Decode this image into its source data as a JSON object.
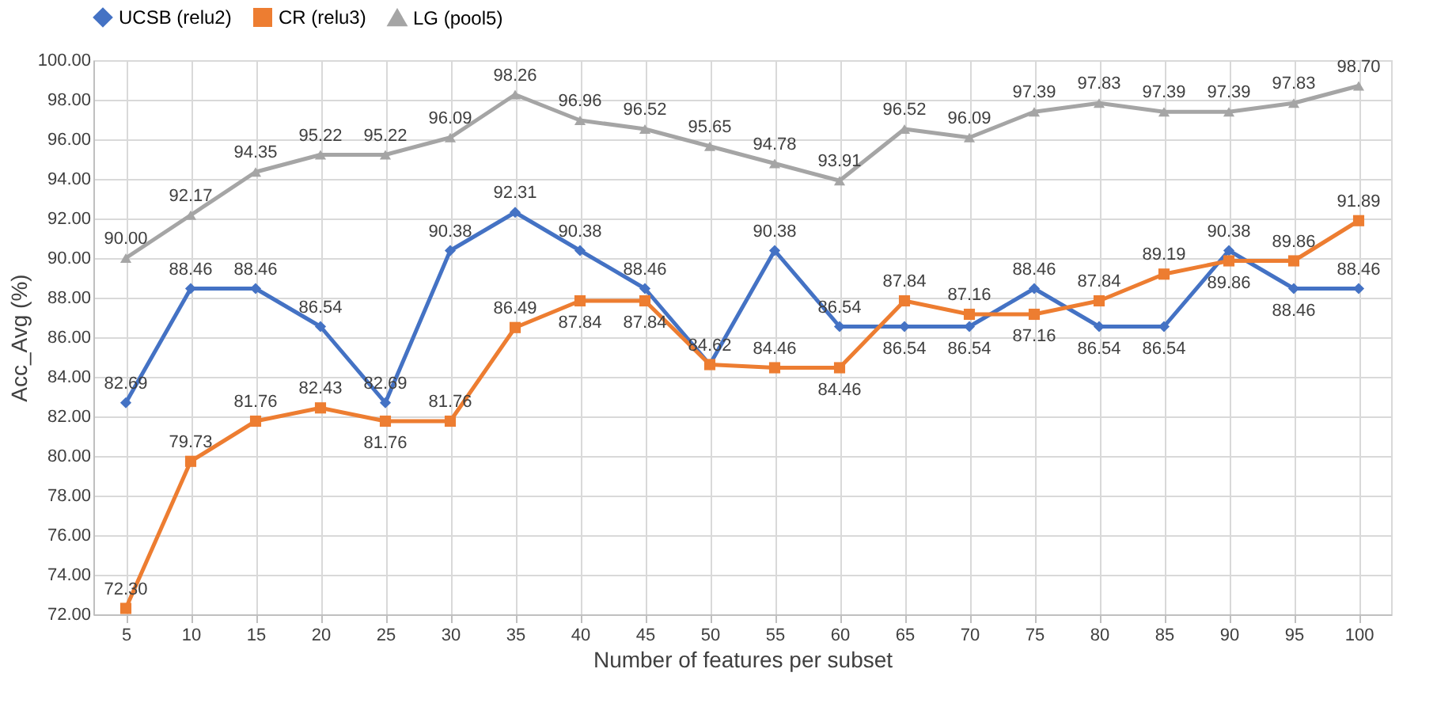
{
  "chart_data": {
    "type": "line",
    "xlabel": "Number of features per subset",
    "ylabel": "Acc_Avg  (%)",
    "categories": [
      "5",
      "10",
      "15",
      "20",
      "25",
      "30",
      "35",
      "40",
      "45",
      "50",
      "55",
      "60",
      "65",
      "70",
      "75",
      "80",
      "85",
      "90",
      "95",
      "100"
    ],
    "series": [
      {
        "name": "UCSB (relu2)",
        "color": "#4472c4",
        "marker": "diamond",
        "values": [
          82.69,
          88.46,
          88.46,
          86.54,
          82.69,
          90.38,
          92.31,
          90.38,
          88.46,
          84.62,
          90.38,
          86.54,
          86.54,
          86.54,
          88.46,
          86.54,
          86.54,
          90.38,
          88.46,
          88.46
        ],
        "value_labels": [
          "82.69",
          "88.46",
          "88.46",
          "86.54",
          "82.69",
          "90.38",
          "92.31",
          "90.38",
          "88.46",
          "84.62",
          "90.38",
          "86.54",
          "86.54",
          "86.54",
          "88.46",
          "86.54",
          "86.54",
          "90.38",
          "88.46",
          "88.46"
        ]
      },
      {
        "name": "CR (relu3)",
        "color": "#ed7d31",
        "marker": "square",
        "values": [
          72.3,
          79.73,
          81.76,
          82.43,
          81.76,
          81.76,
          86.49,
          87.84,
          87.84,
          84.62,
          84.46,
          84.46,
          87.84,
          87.16,
          87.16,
          87.84,
          89.19,
          89.86,
          89.86,
          91.89
        ],
        "value_labels": [
          "72.30",
          "79.73",
          "81.76",
          "82.43",
          "81.76",
          "81.76",
          "86.49",
          "87.84",
          "87.84",
          null,
          "84.46",
          "84.46",
          "87.84",
          "87.16",
          "87.16",
          "87.84",
          "89.19",
          "89.86",
          "89.86",
          "91.89"
        ]
      },
      {
        "name": "LG (pool5)",
        "color": "#a5a5a5",
        "marker": "triangle",
        "values": [
          90.0,
          92.17,
          94.35,
          95.22,
          95.22,
          96.09,
          98.26,
          96.96,
          96.52,
          95.65,
          94.78,
          93.91,
          96.52,
          96.09,
          97.39,
          97.83,
          97.39,
          97.39,
          97.83,
          98.7
        ],
        "value_labels": [
          "90.00",
          "92.17",
          "94.35",
          "95.22",
          "95.22",
          "96.09",
          "98.26",
          "96.96",
          "96.52",
          "95.65",
          "94.78",
          "93.91",
          "96.52",
          "96.09",
          "97.39",
          "97.83",
          "97.39",
          "97.39",
          "97.83",
          "98.70"
        ]
      }
    ],
    "data_labels": true,
    "ylim": [
      72,
      100
    ],
    "yticks": [
      {
        "value": 72,
        "label": "72.00"
      },
      {
        "value": 74,
        "label": "74.00"
      },
      {
        "value": 76,
        "label": "76.00"
      },
      {
        "value": 78,
        "label": "78.00"
      },
      {
        "value": 80,
        "label": "80.00"
      },
      {
        "value": 82,
        "label": "82.00"
      },
      {
        "value": 84,
        "label": "84.00"
      },
      {
        "value": 86,
        "label": "86.00"
      },
      {
        "value": 88,
        "label": "88.00"
      },
      {
        "value": 90,
        "label": "90.00"
      },
      {
        "value": 92,
        "label": "92.00"
      },
      {
        "value": 94,
        "label": "94.00"
      },
      {
        "value": 96,
        "label": "96.00"
      },
      {
        "value": 98,
        "label": "98.00"
      },
      {
        "value": 100,
        "label": "100.00"
      }
    ],
    "grid": true,
    "legend": "top",
    "line_style": "solid"
  }
}
